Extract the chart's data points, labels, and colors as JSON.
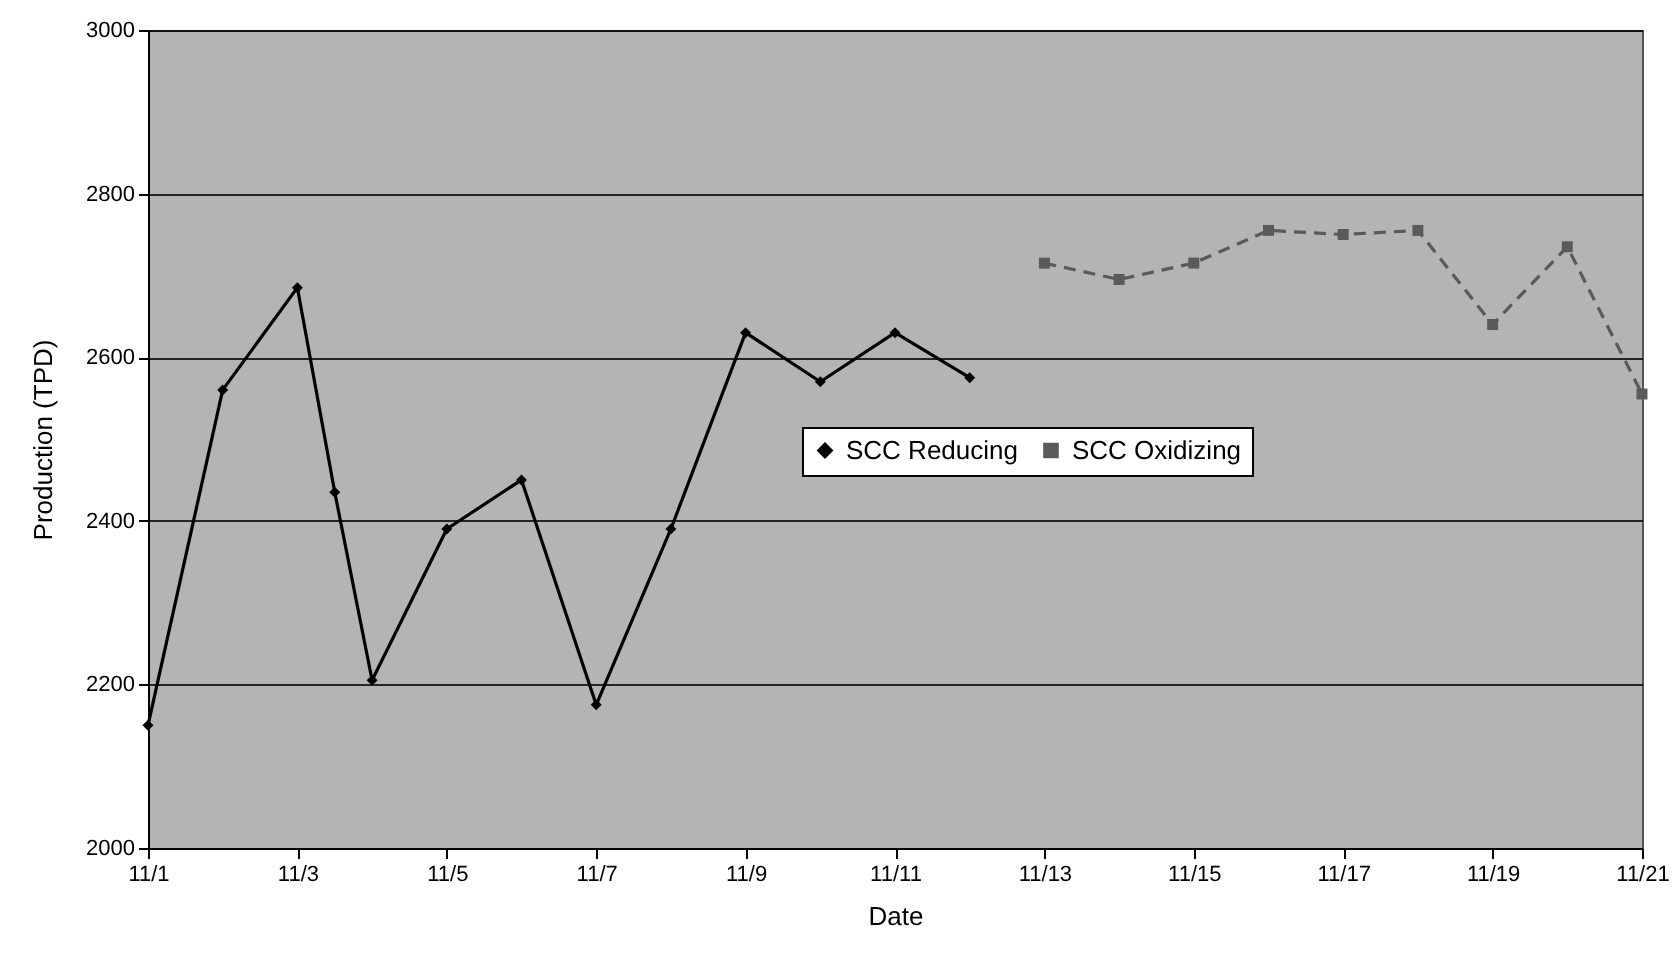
{
  "chart_data": {
    "type": "line",
    "xlabel": "Date",
    "ylabel": "Production (TPD)",
    "xlim": [
      "--11-01",
      "--11-21"
    ],
    "xticks": [
      {
        "value": "--11-01",
        "label": "11/1"
      },
      {
        "value": "--11-03",
        "label": "11/3"
      },
      {
        "value": "--11-05",
        "label": "11/5"
      },
      {
        "value": "--11-07",
        "label": "11/7"
      },
      {
        "value": "--11-09",
        "label": "11/9"
      },
      {
        "value": "--11-11",
        "label": "11/11"
      },
      {
        "value": "--11-13",
        "label": "11/13"
      },
      {
        "value": "--11-15",
        "label": "11/15"
      },
      {
        "value": "--11-17",
        "label": "11/17"
      },
      {
        "value": "--11-19",
        "label": "11/19"
      },
      {
        "value": "--11-21",
        "label": "11/21"
      }
    ],
    "ylim": [
      2000,
      3000
    ],
    "yticks": [
      2000,
      2200,
      2400,
      2600,
      2800,
      3000
    ],
    "grid": "y",
    "legend": "center",
    "series": [
      {
        "name": "SCC Reducing",
        "color": "#000000",
        "marker": "diamond",
        "line_style": "solid",
        "x": [
          "--11-01",
          "--11-02",
          "--11-03",
          "--11-03T12:00",
          "--11-04",
          "--11-05",
          "--11-06",
          "--11-07",
          "--11-08",
          "--11-09",
          "--11-10",
          "--11-11",
          "--11-12"
        ],
        "values": [
          2150,
          2560,
          2685,
          2435,
          2205,
          2390,
          2450,
          2175,
          2390,
          2630,
          2570,
          2630,
          2575
        ]
      },
      {
        "name": "SCC Oxidizing",
        "color": "#5a5a5a",
        "marker": "square",
        "line_style": "dashed",
        "x": [
          "--11-13",
          "--11-14",
          "--11-15",
          "--11-16",
          "--11-17",
          "--11-18",
          "--11-19",
          "--11-20",
          "--11-21"
        ],
        "values": [
          2715,
          2695,
          2715,
          2755,
          2750,
          2755,
          2640,
          2735,
          2555
        ]
      }
    ]
  }
}
